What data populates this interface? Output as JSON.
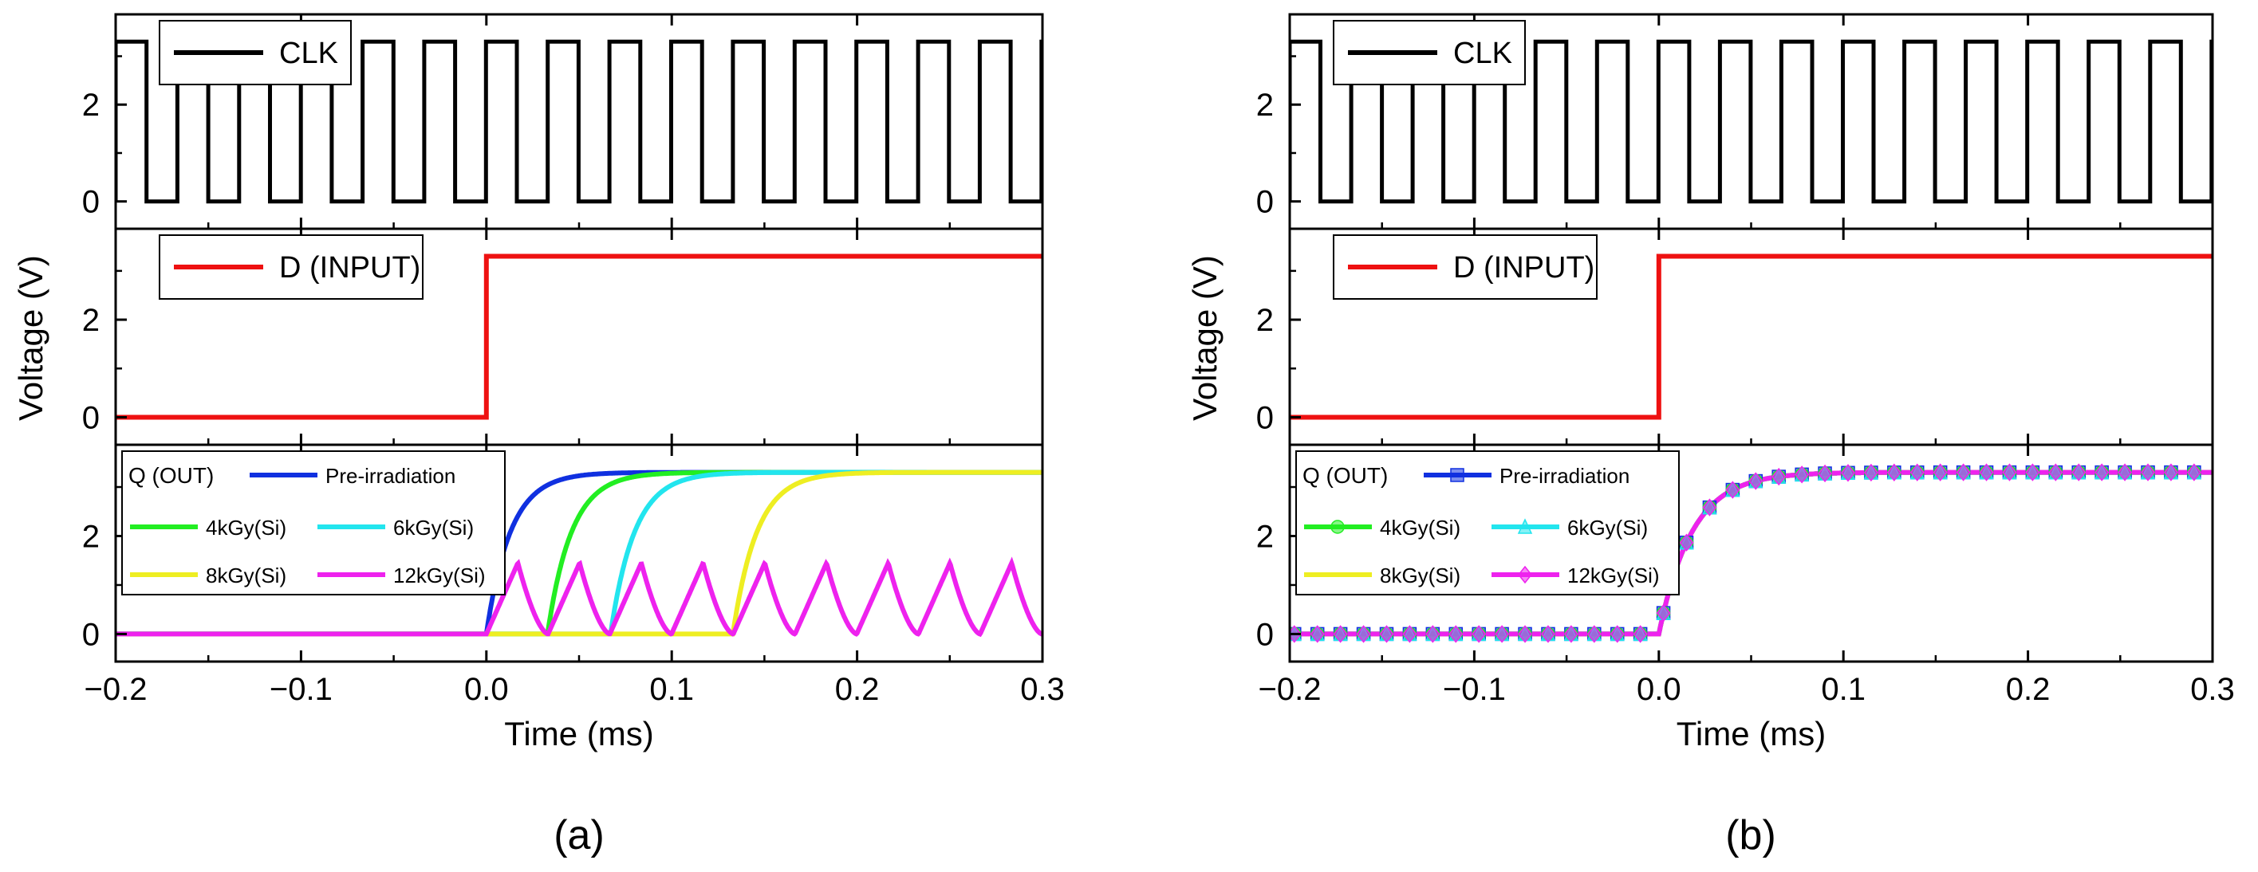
{
  "chart_data": [
    {
      "type": "line",
      "panel_label": "(a)",
      "xlabel": "Time (ms)",
      "ylabel": "Voltage (V)",
      "xlim": [
        -0.2,
        0.3
      ],
      "xticks": [
        -0.2,
        -0.1,
        0.0,
        0.1,
        0.2,
        0.3
      ],
      "xtick_labels": [
        "−0.2",
        "−0.1",
        "0.0",
        "0.1",
        "0.2",
        "0.3"
      ],
      "grid": false,
      "subplots": [
        {
          "ylim": [
            -0.4,
            3.7
          ],
          "yticks": [
            0,
            2
          ],
          "legend": [
            "CLK"
          ],
          "legend_position": "top-left",
          "series": [
            {
              "name": "CLK",
              "color": "#000000",
              "kind": "clock",
              "high": 3.3,
              "low": 0,
              "period": 0.0333,
              "first_rise": -0.2,
              "duty": 0.5
            }
          ]
        },
        {
          "ylim": [
            -0.4,
            3.7
          ],
          "yticks": [
            0,
            2
          ],
          "legend": [
            "D (INPUT)"
          ],
          "legend_position": "top-left",
          "series": [
            {
              "name": "D (INPUT)",
              "color": "#ee1111",
              "kind": "step",
              "low": 0,
              "high": 3.3,
              "t_step": 0.0
            }
          ]
        },
        {
          "ylim": [
            -0.4,
            3.7
          ],
          "yticks": [
            0,
            2
          ],
          "legend_title": "Q (OUT)",
          "legend_position": "left",
          "series": [
            {
              "name": "Pre-irradiation",
              "color": "#1030e0",
              "kind": "rise",
              "t0": 0.0,
              "tau": 0.013,
              "high": 3.3,
              "low": 0
            },
            {
              "name": "4kGy(Si)",
              "color": "#22ee22",
              "kind": "rise",
              "t0": 0.033,
              "tau": 0.013,
              "high": 3.3,
              "low": 0
            },
            {
              "name": "6kGy(Si)",
              "color": "#22e5ee",
              "kind": "rise",
              "t0": 0.067,
              "tau": 0.013,
              "high": 3.3,
              "low": 0
            },
            {
              "name": "8kGy(Si)",
              "color": "#eeee22",
              "kind": "rise",
              "t0": 0.133,
              "tau": 0.013,
              "high": 3.3,
              "low": 0
            },
            {
              "name": "12kGy(Si)",
              "color": "#ee22ee",
              "kind": "spikes",
              "t0": 0.0,
              "period": 0.0333,
              "peak": 1.45,
              "low": 0,
              "rise": 0.017
            }
          ]
        }
      ]
    },
    {
      "type": "line",
      "panel_label": "(b)",
      "xlabel": "Time (ms)",
      "ylabel": "Voltage (V)",
      "xlim": [
        -0.2,
        0.3
      ],
      "xticks": [
        -0.2,
        -0.1,
        0.0,
        0.1,
        0.2,
        0.3
      ],
      "xtick_labels": [
        "−0.2",
        "−0.1",
        "0.0",
        "0.1",
        "0.2",
        "0.3"
      ],
      "grid": false,
      "subplots": [
        {
          "ylim": [
            -0.4,
            3.7
          ],
          "yticks": [
            0,
            2
          ],
          "legend": [
            "CLK"
          ],
          "legend_position": "top-left",
          "series": [
            {
              "name": "CLK",
              "color": "#000000",
              "kind": "clock",
              "high": 3.3,
              "low": 0,
              "period": 0.0333,
              "first_rise": -0.2,
              "duty": 0.5
            }
          ]
        },
        {
          "ylim": [
            -0.4,
            3.7
          ],
          "yticks": [
            0,
            2
          ],
          "legend": [
            "D (INPUT)"
          ],
          "legend_position": "top-left",
          "series": [
            {
              "name": "D (INPUT)",
              "color": "#ee1111",
              "kind": "step",
              "low": 0,
              "high": 3.3,
              "t_step": 0.0
            }
          ]
        },
        {
          "ylim": [
            -0.4,
            3.7
          ],
          "yticks": [
            0,
            2
          ],
          "legend_title": "Q (OUT)",
          "legend_position": "left",
          "series": [
            {
              "name": "Pre-irradiation",
              "color": "#1030e0",
              "kind": "rise",
              "t0": 0.0,
              "tau": 0.018,
              "high": 3.3,
              "low": 0,
              "marker": "square"
            },
            {
              "name": "4kGy(Si)",
              "color": "#22ee22",
              "kind": "rise",
              "t0": 0.0,
              "tau": 0.018,
              "high": 3.3,
              "low": 0,
              "marker": "circle"
            },
            {
              "name": "6kGy(Si)",
              "color": "#22e5ee",
              "kind": "rise",
              "t0": 0.0,
              "tau": 0.018,
              "high": 3.3,
              "low": 0,
              "marker": "triangle"
            },
            {
              "name": "8kGy(Si)",
              "color": "#eeee22",
              "kind": "rise",
              "t0": 0.0,
              "tau": 0.018,
              "high": 3.3,
              "low": 0
            },
            {
              "name": "12kGy(Si)",
              "color": "#ee22ee",
              "kind": "rise",
              "t0": 0.0,
              "tau": 0.018,
              "high": 3.3,
              "low": 0,
              "marker": "diamond"
            }
          ]
        }
      ]
    }
  ]
}
